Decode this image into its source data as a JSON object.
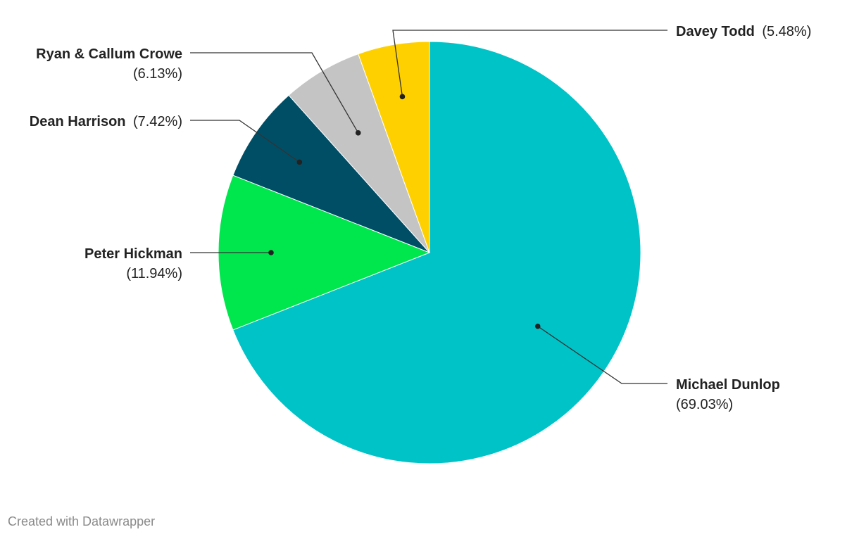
{
  "chart_data": {
    "type": "pie",
    "title": "",
    "slices": [
      {
        "name": "Michael Dunlop",
        "pct_label": "(69.03%)",
        "value": 69.03,
        "color": "#00c3c8"
      },
      {
        "name": "Peter Hickman",
        "pct_label": "(11.94%)",
        "value": 11.94,
        "color": "#00e64d"
      },
      {
        "name": "Dean Harrison",
        "pct_label": "(7.42%)",
        "value": 7.42,
        "color": "#004e66"
      },
      {
        "name": "Ryan & Callum Crowe",
        "pct_label": "(6.13%)",
        "value": 6.13,
        "color": "#c4c4c4"
      },
      {
        "name": "Davey Todd",
        "pct_label": "(5.48%)",
        "value": 5.48,
        "color": "#ffd000"
      }
    ]
  },
  "footer": {
    "credit": "Created with Datawrapper"
  }
}
